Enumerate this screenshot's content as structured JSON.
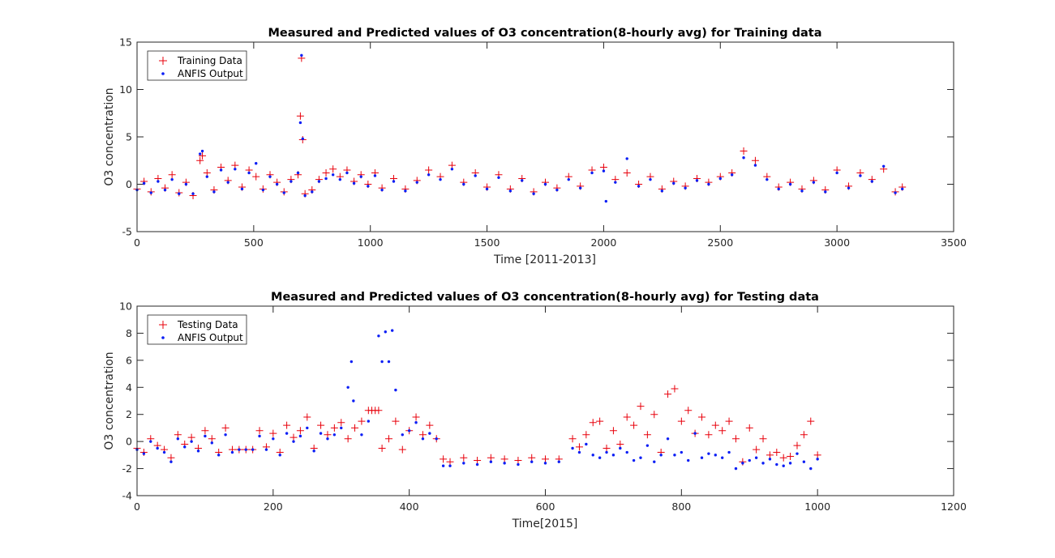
{
  "chart_data": [
    {
      "type": "scatter",
      "title": "Measured and Predicted values of O3 concentration(8-hourly avg) for Training data",
      "xlabel": "Time [2011-2013]",
      "ylabel": "O3 concentration",
      "xlim": [
        0,
        3500
      ],
      "ylim": [
        -5,
        15
      ],
      "xticks": [
        "0",
        "500",
        "1000",
        "1500",
        "2000",
        "2500",
        "3000",
        "3500"
      ],
      "yticks": [
        "-5",
        "0",
        "5",
        "10",
        "15"
      ],
      "legend": "top-left",
      "grid": false,
      "series": [
        {
          "name": "Training Data",
          "marker": "+",
          "color": "#e8000b",
          "x": [
            0,
            30,
            60,
            90,
            120,
            150,
            180,
            210,
            240,
            270,
            280,
            300,
            330,
            360,
            390,
            420,
            450,
            480,
            510,
            540,
            570,
            600,
            630,
            660,
            690,
            700,
            705,
            710,
            720,
            750,
            780,
            810,
            840,
            870,
            900,
            930,
            960,
            990,
            1020,
            1050,
            1100,
            1150,
            1200,
            1250,
            1300,
            1350,
            1400,
            1450,
            1500,
            1550,
            1600,
            1650,
            1700,
            1750,
            1800,
            1850,
            1900,
            1950,
            2000,
            2050,
            2100,
            2150,
            2200,
            2250,
            2300,
            2350,
            2400,
            2450,
            2500,
            2550,
            2600,
            2650,
            2700,
            2750,
            2800,
            2850,
            2900,
            2950,
            3000,
            3050,
            3100,
            3150,
            3200,
            3250,
            3280
          ],
          "y": [
            -0.5,
            0.3,
            -0.8,
            0.6,
            -0.4,
            1.0,
            -0.9,
            0.2,
            -1.2,
            2.5,
            3.0,
            1.2,
            -0.6,
            1.8,
            0.4,
            2.0,
            -0.3,
            1.5,
            0.8,
            -0.5,
            1.0,
            0.2,
            -0.8,
            0.5,
            1.0,
            7.2,
            13.3,
            4.7,
            -1.0,
            -0.6,
            0.5,
            1.2,
            1.6,
            0.8,
            1.5,
            0.3,
            1.0,
            0.0,
            1.2,
            -0.4,
            0.6,
            -0.5,
            0.4,
            1.5,
            0.8,
            2.0,
            0.2,
            1.2,
            -0.3,
            1.0,
            -0.5,
            0.6,
            -0.8,
            0.2,
            -0.4,
            0.8,
            -0.2,
            1.5,
            1.8,
            0.5,
            1.2,
            0.0,
            0.8,
            -0.5,
            0.3,
            -0.2,
            0.6,
            0.2,
            0.8,
            1.2,
            3.5,
            2.5,
            0.8,
            -0.3,
            0.2,
            -0.5,
            0.4,
            -0.6,
            1.5,
            -0.2,
            1.2,
            0.5,
            1.6,
            -0.8,
            -0.3
          ]
        },
        {
          "name": "ANFIS Output",
          "marker": ".",
          "color": "#0b1ef5",
          "x": [
            0,
            30,
            60,
            90,
            120,
            150,
            180,
            210,
            240,
            270,
            280,
            300,
            330,
            360,
            390,
            420,
            450,
            480,
            510,
            540,
            570,
            600,
            630,
            660,
            690,
            700,
            705,
            710,
            720,
            750,
            780,
            810,
            840,
            870,
            900,
            930,
            960,
            990,
            1020,
            1050,
            1100,
            1150,
            1200,
            1250,
            1300,
            1350,
            1400,
            1450,
            1500,
            1550,
            1600,
            1650,
            1700,
            1750,
            1800,
            1850,
            1900,
            1950,
            2000,
            2010,
            2050,
            2100,
            2150,
            2200,
            2250,
            2300,
            2350,
            2400,
            2450,
            2500,
            2550,
            2600,
            2650,
            2700,
            2750,
            2800,
            2850,
            2900,
            2950,
            3000,
            3050,
            3100,
            3150,
            3200,
            3250,
            3280
          ],
          "y": [
            -0.6,
            0.1,
            -0.9,
            0.3,
            -0.6,
            0.5,
            -1.0,
            0.0,
            -1.0,
            3.2,
            3.5,
            0.8,
            -0.8,
            1.5,
            0.2,
            1.6,
            -0.5,
            1.2,
            2.2,
            -0.6,
            0.8,
            0.0,
            -0.9,
            0.3,
            1.2,
            6.5,
            13.6,
            4.8,
            -1.2,
            -0.8,
            0.3,
            0.6,
            1.0,
            0.5,
            1.2,
            0.1,
            0.8,
            -0.2,
            0.9,
            -0.6,
            0.3,
            -0.7,
            0.2,
            1.0,
            0.5,
            1.6,
            0.0,
            0.9,
            -0.5,
            0.7,
            -0.7,
            0.4,
            -1.0,
            0.0,
            -0.6,
            0.5,
            -0.4,
            1.2,
            1.4,
            -1.8,
            0.2,
            2.7,
            -0.2,
            0.5,
            -0.7,
            0.1,
            -0.4,
            0.4,
            0.0,
            0.6,
            1.0,
            2.8,
            2.0,
            0.5,
            -0.5,
            0.0,
            -0.7,
            0.2,
            -0.8,
            1.2,
            -0.4,
            0.9,
            0.3,
            1.9,
            -0.9,
            -0.5
          ]
        }
      ]
    },
    {
      "type": "scatter",
      "title": "Measured and Predicted values of O3 concentration(8-hourly avg) for Testing data",
      "xlabel": "Time[2015]",
      "ylabel": "O3 concentration",
      "xlim": [
        0,
        1200
      ],
      "ylim": [
        -4,
        10
      ],
      "xticks": [
        "0",
        "200",
        "400",
        "600",
        "800",
        "1000",
        "1200"
      ],
      "yticks": [
        "-4",
        "-2",
        "0",
        "2",
        "4",
        "6",
        "8",
        "10"
      ],
      "legend": "top-left",
      "grid": false,
      "series": [
        {
          "name": "Testing Data",
          "marker": "+",
          "color": "#e8000b",
          "x": [
            0,
            10,
            20,
            30,
            40,
            50,
            60,
            70,
            80,
            90,
            100,
            110,
            120,
            130,
            140,
            150,
            160,
            170,
            180,
            190,
            200,
            210,
            220,
            230,
            240,
            250,
            260,
            270,
            280,
            290,
            300,
            310,
            320,
            330,
            340,
            345,
            350,
            355,
            360,
            370,
            380,
            390,
            400,
            410,
            420,
            430,
            440,
            450,
            460,
            480,
            500,
            520,
            540,
            560,
            580,
            600,
            620,
            640,
            650,
            660,
            670,
            680,
            690,
            700,
            710,
            720,
            730,
            740,
            750,
            760,
            770,
            780,
            790,
            800,
            810,
            820,
            830,
            840,
            850,
            860,
            870,
            880,
            890,
            900,
            910,
            920,
            930,
            940,
            950,
            960,
            970,
            980,
            990,
            1000
          ],
          "y": [
            -0.5,
            -0.8,
            0.2,
            -0.3,
            -0.6,
            -1.2,
            0.5,
            -0.2,
            0.3,
            -0.5,
            0.8,
            0.2,
            -0.8,
            1.0,
            -0.6,
            -0.6,
            -0.6,
            -0.6,
            0.8,
            -0.4,
            0.6,
            -0.8,
            1.2,
            0.3,
            0.8,
            1.8,
            -0.5,
            1.2,
            0.5,
            1.0,
            1.4,
            0.2,
            1.0,
            1.5,
            2.3,
            2.3,
            2.3,
            2.3,
            -0.5,
            0.2,
            1.5,
            -0.6,
            0.8,
            1.8,
            0.5,
            1.2,
            0.2,
            -1.3,
            -1.5,
            -1.2,
            -1.4,
            -1.2,
            -1.3,
            -1.4,
            -1.2,
            -1.3,
            -1.3,
            0.2,
            -0.4,
            0.5,
            1.4,
            1.5,
            -0.5,
            0.8,
            -0.2,
            1.8,
            1.2,
            2.6,
            0.5,
            2.0,
            -0.8,
            3.5,
            3.9,
            1.5,
            2.3,
            0.6,
            1.8,
            0.5,
            1.2,
            0.8,
            1.5,
            0.2,
            -1.5,
            1.0,
            -0.6,
            0.2,
            -1.0,
            -0.8,
            -1.2,
            -1.1,
            -0.3,
            0.5,
            1.5,
            -1.0
          ]
        },
        {
          "name": "ANFIS Output",
          "marker": ".",
          "color": "#0b1ef5",
          "x": [
            0,
            10,
            20,
            30,
            40,
            50,
            60,
            70,
            80,
            90,
            100,
            110,
            120,
            130,
            140,
            150,
            160,
            170,
            180,
            190,
            200,
            210,
            220,
            230,
            240,
            250,
            260,
            270,
            280,
            290,
            300,
            310,
            315,
            318,
            330,
            340,
            355,
            360,
            365,
            370,
            375,
            380,
            390,
            400,
            410,
            420,
            430,
            440,
            450,
            460,
            480,
            500,
            520,
            540,
            560,
            580,
            600,
            620,
            640,
            650,
            660,
            670,
            680,
            690,
            700,
            710,
            720,
            730,
            740,
            750,
            760,
            770,
            780,
            790,
            800,
            810,
            820,
            830,
            840,
            850,
            860,
            870,
            880,
            890,
            900,
            910,
            920,
            930,
            940,
            950,
            960,
            970,
            980,
            990,
            1000
          ],
          "y": [
            -0.6,
            -0.9,
            0.0,
            -0.5,
            -0.8,
            -1.5,
            0.2,
            -0.4,
            0.0,
            -0.7,
            0.4,
            -0.1,
            -1.0,
            0.5,
            -0.8,
            -0.6,
            -0.6,
            -0.6,
            0.4,
            -0.6,
            0.2,
            -1.0,
            0.6,
            0.0,
            0.4,
            1.0,
            -0.7,
            0.6,
            0.2,
            0.5,
            1.0,
            4.0,
            5.9,
            3.0,
            0.5,
            1.5,
            7.8,
            5.9,
            8.1,
            5.9,
            8.2,
            3.8,
            0.5,
            0.8,
            1.4,
            0.2,
            0.6,
            0.2,
            -1.8,
            -1.8,
            -1.6,
            -1.7,
            -1.5,
            -1.6,
            -1.7,
            -1.5,
            -1.6,
            -1.5,
            -0.5,
            -0.8,
            -0.2,
            -1.0,
            -1.2,
            -0.8,
            -1.0,
            -0.5,
            -0.8,
            -1.4,
            -1.2,
            -0.3,
            -1.5,
            -1.0,
            0.2,
            -1.0,
            -0.8,
            -1.4,
            0.6,
            -1.2,
            -0.9,
            -1.0,
            -1.2,
            -0.8,
            -2.0,
            -1.6,
            -1.4,
            -1.2,
            -1.6,
            -1.3,
            -1.7,
            -1.8,
            -1.6,
            -0.9,
            -1.5,
            -2.0,
            -1.3
          ]
        }
      ]
    }
  ]
}
